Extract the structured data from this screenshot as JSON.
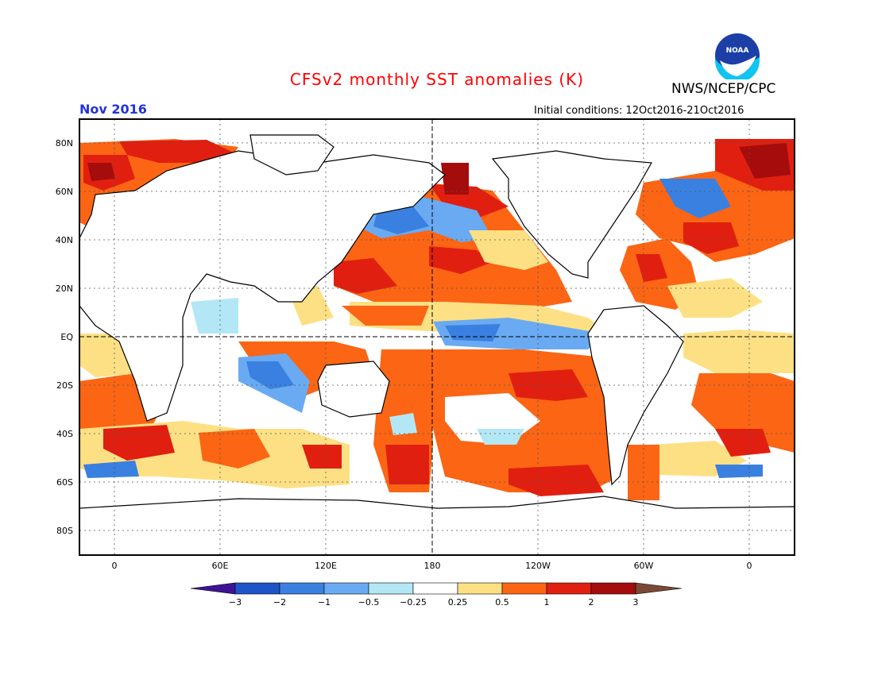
{
  "header": {
    "title": "CFSv2 monthly SST anomalies (K)",
    "title_color": "#ff0000",
    "org": "NWS/NCEP/CPC",
    "month": "Nov 2016",
    "month_color": "#2233dd",
    "initial_conditions": "Initial conditions: 12Oct2016-21Oct2016",
    "logo_text": "NOAA"
  },
  "map": {
    "lat_labels": [
      "80N",
      "60N",
      "40N",
      "20N",
      "EQ",
      "20S",
      "40S",
      "60S",
      "80S"
    ],
    "lon_labels": [
      "0",
      "60E",
      "120E",
      "180",
      "120W",
      "60W",
      "0"
    ],
    "reference_lines": [
      "equator",
      "dateline"
    ]
  },
  "colorbar": {
    "labels": [
      "−3",
      "−2",
      "−1",
      "−0.5",
      "−0.25",
      "0.25",
      "0.5",
      "1",
      "2",
      "3"
    ],
    "colors": [
      "#3d1494",
      "#1f54c8",
      "#3a80e0",
      "#6aaaf2",
      "#b3e7f5",
      "#ffffff",
      "#fde084",
      "#fb6514",
      "#e11f10",
      "#a50c0c",
      "#7a4a35"
    ]
  }
}
